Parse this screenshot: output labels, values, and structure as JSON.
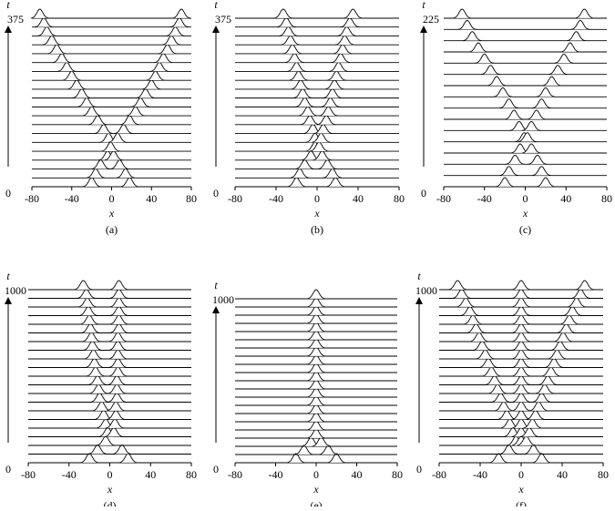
{
  "chart_data": [
    {
      "type": "waterfall",
      "label": "(a)",
      "xlabel": "x",
      "ylabel": "t",
      "xlim": [
        -80,
        80
      ],
      "xticks": [
        -80,
        -40,
        0,
        40,
        80
      ],
      "tlim": [
        0,
        375
      ],
      "tticks": [
        0,
        375
      ],
      "peaks": [
        [
          -20,
          18
        ],
        [
          -16,
          14
        ],
        [
          -11,
          8
        ],
        [
          -4,
          2
        ],
        [
          -1
        ],
        [
          -3,
          6
        ],
        [
          -8,
          12
        ],
        [
          -14,
          18
        ],
        [
          -20,
          24
        ],
        [
          -25,
          29
        ],
        [
          -30,
          34
        ],
        [
          -35,
          40
        ],
        [
          -40,
          44
        ],
        [
          -45,
          48
        ],
        [
          -50,
          52
        ],
        [
          -55,
          56
        ],
        [
          -60,
          60
        ],
        [
          -65,
          64
        ],
        [
          -68,
          68
        ],
        [
          -72,
          70
        ]
      ]
    },
    {
      "type": "waterfall",
      "label": "(b)",
      "xlabel": "x",
      "ylabel": "t",
      "xlim": [
        -80,
        80
      ],
      "xticks": [
        -80,
        -40,
        0,
        40,
        80
      ],
      "tlim": [
        0,
        375
      ],
      "tticks": [
        0,
        375
      ],
      "peaks": [
        [
          -20,
          18
        ],
        [
          -17,
          15
        ],
        [
          -12,
          10
        ],
        [
          -6,
          5
        ],
        [
          -2,
          2
        ],
        [
          -2,
          4
        ],
        [
          -4,
          6
        ],
        [
          -7,
          9
        ],
        [
          -9,
          11
        ],
        [
          -12,
          13
        ],
        [
          -14,
          15
        ],
        [
          -16,
          17
        ],
        [
          -18,
          19
        ],
        [
          -20,
          21
        ],
        [
          -22,
          23
        ],
        [
          -24,
          25
        ],
        [
          -26,
          27
        ],
        [
          -28,
          29
        ],
        [
          -30,
          32
        ],
        [
          -33,
          35
        ]
      ]
    },
    {
      "type": "waterfall",
      "label": "(c)",
      "xlabel": "x",
      "ylabel": "t",
      "xlim": [
        -80,
        80
      ],
      "xticks": [
        -80,
        -40,
        0,
        40,
        80
      ],
      "tlim": [
        0,
        225
      ],
      "tticks": [
        0,
        225
      ],
      "peaks": [
        [
          -20,
          20
        ],
        [
          -16,
          16
        ],
        [
          -10,
          12
        ],
        [
          -5,
          6
        ],
        [
          -1,
          2
        ],
        [
          -6,
          6
        ],
        [
          -11,
          11
        ],
        [
          -16,
          16
        ],
        [
          -22,
          20
        ],
        [
          -28,
          26
        ],
        [
          -34,
          32
        ],
        [
          -40,
          38
        ],
        [
          -46,
          44
        ],
        [
          -52,
          50
        ],
        [
          -57,
          54
        ],
        [
          -62,
          58
        ]
      ]
    },
    {
      "type": "waterfall",
      "label": "(d)",
      "xlabel": "x",
      "ylabel": "t",
      "xlim": [
        -80,
        80
      ],
      "xticks": [
        -80,
        -40,
        0,
        40,
        80
      ],
      "tlim": [
        0,
        1000
      ],
      "tticks": [
        0,
        1000
      ],
      "peaks": [
        [
          -20,
          18
        ],
        [
          -12,
          12
        ],
        [
          -4
        ],
        [
          -2,
          4
        ],
        [
          -4,
          5
        ],
        [
          -6,
          6
        ],
        [
          -8,
          6
        ],
        [
          -10,
          7
        ],
        [
          -11,
          7
        ],
        [
          -12,
          7
        ],
        [
          -14,
          8
        ],
        [
          -15,
          8
        ],
        [
          -16,
          8
        ],
        [
          -17,
          8
        ],
        [
          -18,
          8
        ],
        [
          -19,
          9
        ],
        [
          -20,
          9
        ],
        [
          -21,
          9
        ],
        [
          -22,
          9
        ],
        [
          -23,
          9
        ],
        [
          -26,
          9
        ]
      ]
    },
    {
      "type": "waterfall",
      "label": "(e)",
      "xlabel": "x",
      "ylabel": "t",
      "xlim": [
        -80,
        80
      ],
      "xticks": [
        -80,
        -40,
        0,
        40,
        80
      ],
      "tlim": [
        0,
        1000
      ],
      "tticks": [
        0,
        1000
      ],
      "peaks": [
        [
          -20,
          20
        ],
        [
          -12,
          12
        ],
        [
          -5,
          5
        ],
        [
          0
        ],
        [
          0
        ],
        [
          0
        ],
        [
          0
        ],
        [
          0
        ],
        [
          0
        ],
        [
          0
        ],
        [
          0
        ],
        [
          0
        ],
        [
          0
        ],
        [
          0
        ],
        [
          0
        ],
        [
          0
        ],
        [
          0
        ],
        [
          0
        ],
        [
          0
        ],
        [
          0
        ],
        [
          0
        ]
      ]
    },
    {
      "type": "waterfall",
      "label": "(f)",
      "xlabel": "x",
      "ylabel": "t",
      "xlim": [
        -80,
        80
      ],
      "xticks": [
        -80,
        -40,
        0,
        40,
        80
      ],
      "tlim": [
        0,
        1000
      ],
      "tticks": [
        0,
        1000
      ],
      "peaks": [
        [
          -22,
          20
        ],
        [
          -12,
          12
        ],
        [
          -5,
          0,
          5
        ],
        [
          -8,
          0,
          8
        ],
        [
          -11,
          0,
          11
        ],
        [
          -14,
          0,
          14
        ],
        [
          -17,
          0,
          17
        ],
        [
          -20,
          0,
          20
        ],
        [
          -23,
          0,
          23
        ],
        [
          -26,
          0,
          26
        ],
        [
          -29,
          0,
          29
        ],
        [
          -32,
          0,
          32
        ],
        [
          -35,
          0,
          35
        ],
        [
          -38,
          0,
          38
        ],
        [
          -41,
          0,
          41
        ],
        [
          -44,
          0,
          44
        ],
        [
          -47,
          0,
          47
        ],
        [
          -50,
          0,
          50
        ],
        [
          -54,
          0,
          54
        ],
        [
          -58,
          0,
          58
        ],
        [
          -62,
          0,
          62
        ]
      ]
    }
  ]
}
